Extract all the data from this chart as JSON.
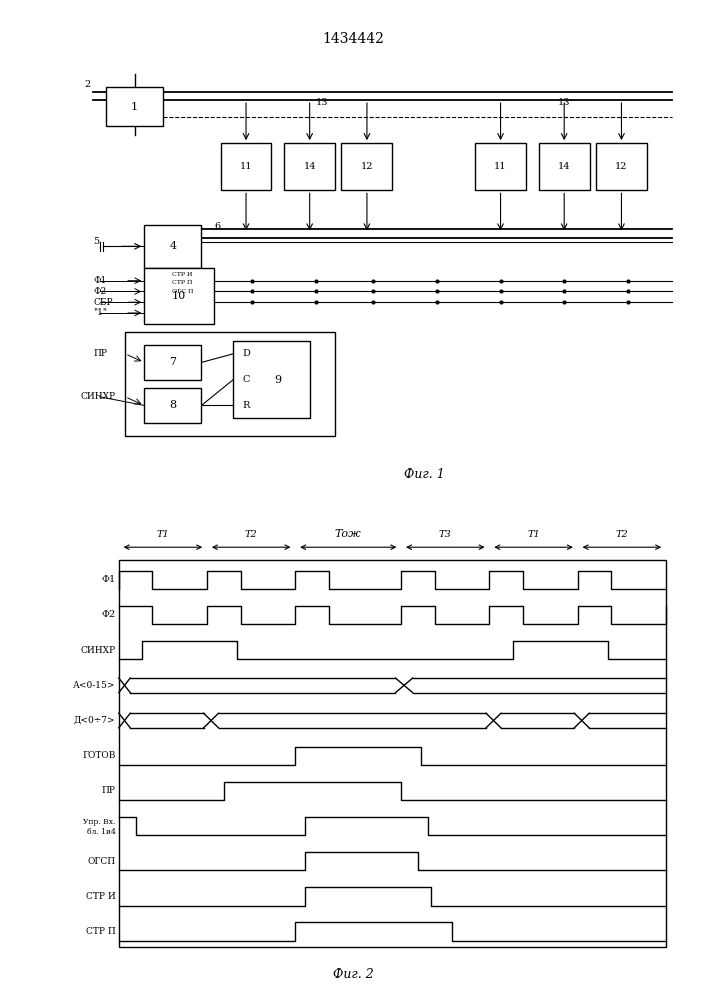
{
  "title": "1434442",
  "fig1_caption": "Фиг. 1",
  "fig2_caption": "Фиг. 2",
  "bg_color": "#ffffff",
  "line_color": "#000000",
  "time_labels": [
    "T1",
    "T2",
    "Tож",
    "T3",
    "T1",
    "T2"
  ],
  "signal_labels": [
    "Ф1",
    "Ф2",
    "СИНХР",
    "А<0-15>",
    "Д<0÷7>",
    "ГОТОВ",
    "ПР",
    "Упр. Вх.\nбл. 1и4",
    "ОГСП",
    "СТР И",
    "СТР П"
  ],
  "periods": [
    1.0,
    1.0,
    1.2,
    1.0,
    1.0,
    1.0
  ]
}
